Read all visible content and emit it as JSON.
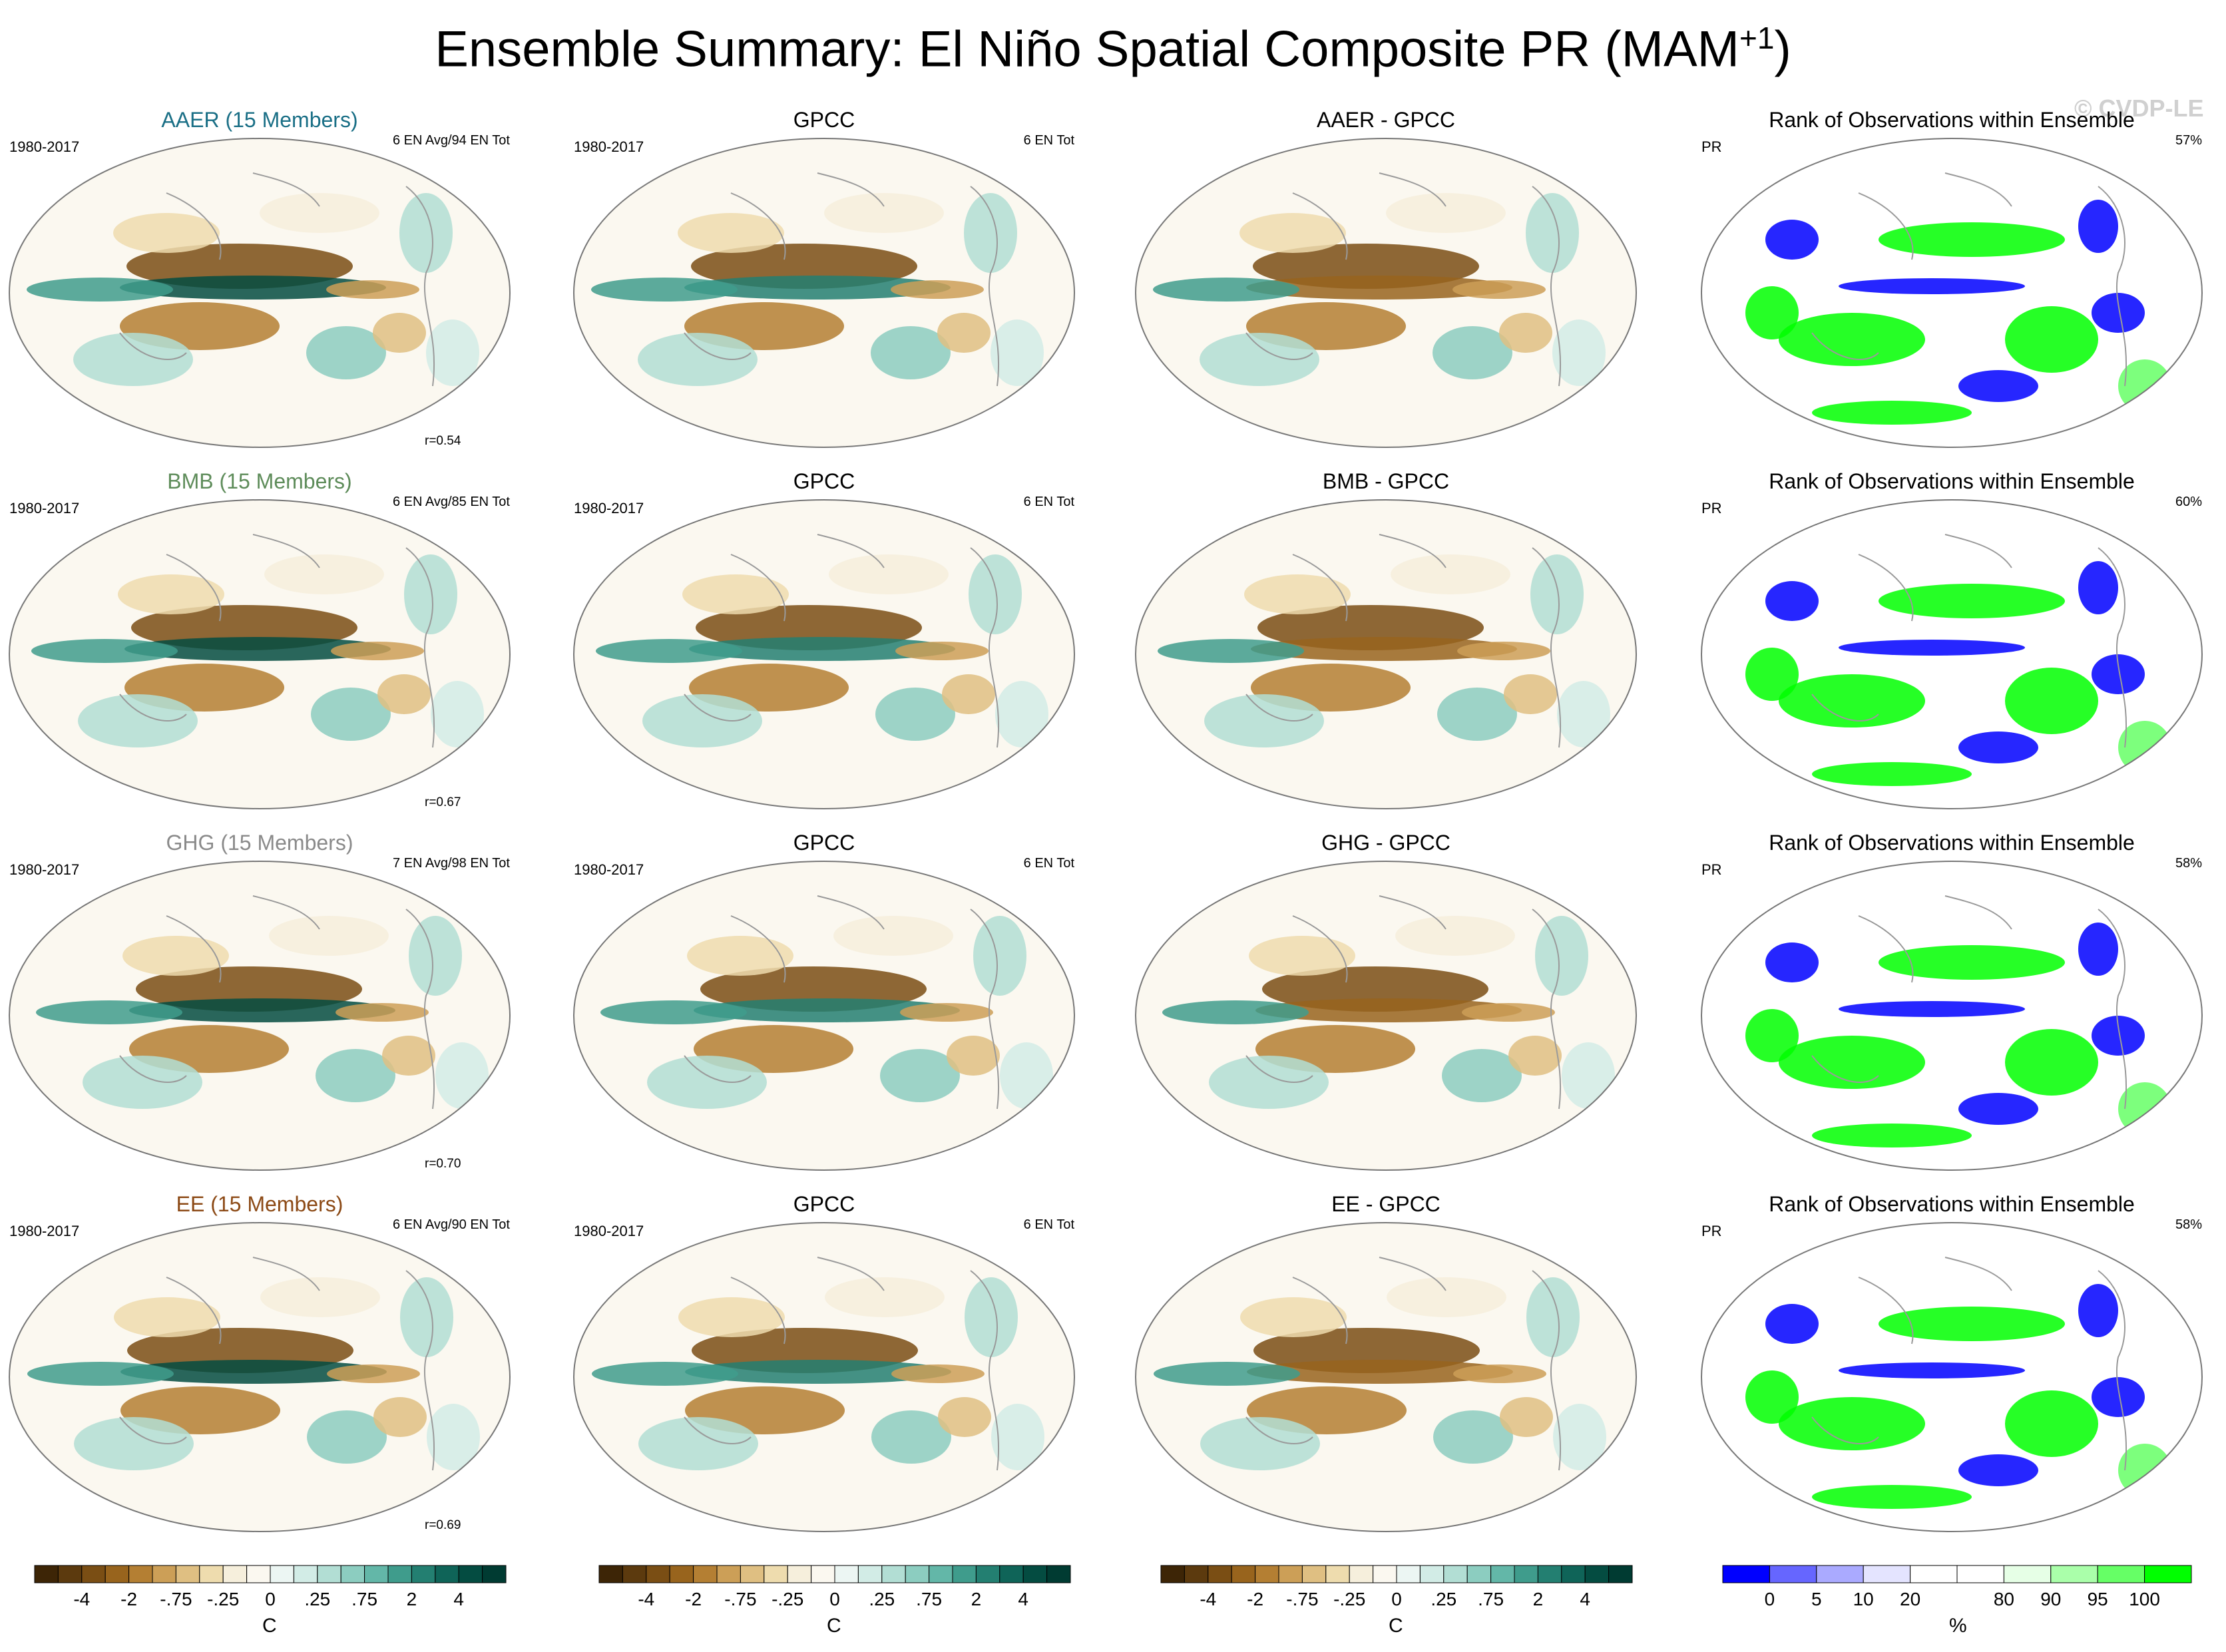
{
  "title": {
    "main": "Ensemble Summary: El Niño Spatial Composite PR (MAM",
    "superscript": "+1",
    "close": ")"
  },
  "watermark": "© CVDP-LE",
  "colors": {
    "AAER": "#1a6f86",
    "BMB": "#5e8c5a",
    "GHG": "#8a8a8a",
    "EE": "#8c4a16"
  },
  "rows": [
    {
      "model": {
        "title": "AAER (15 Members)",
        "period": "1980-2017",
        "events": "6 EN Avg/94 EN Tot",
        "r": "r=0.54",
        "color_key": "AAER"
      },
      "obs": {
        "title": "GPCC",
        "period": "1980-2017",
        "events": "6 EN Tot"
      },
      "diff": {
        "title": "AAER - GPCC"
      },
      "rank": {
        "title": "Rank of Observations within Ensemble",
        "var": "PR",
        "percent": "57%"
      }
    },
    {
      "model": {
        "title": "BMB (15 Members)",
        "period": "1980-2017",
        "events": "6 EN Avg/85 EN Tot",
        "r": "r=0.67",
        "color_key": "BMB"
      },
      "obs": {
        "title": "GPCC",
        "period": "1980-2017",
        "events": "6 EN Tot"
      },
      "diff": {
        "title": "BMB - GPCC"
      },
      "rank": {
        "title": "Rank of Observations within Ensemble",
        "var": "PR",
        "percent": "60%"
      }
    },
    {
      "model": {
        "title": "GHG (15 Members)",
        "period": "1980-2017",
        "events": "7 EN Avg/98 EN Tot",
        "r": "r=0.70",
        "color_key": "GHG"
      },
      "obs": {
        "title": "GPCC",
        "period": "1980-2017",
        "events": "6 EN Tot"
      },
      "diff": {
        "title": "GHG - GPCC"
      },
      "rank": {
        "title": "Rank of Observations within Ensemble",
        "var": "PR",
        "percent": "58%"
      }
    },
    {
      "model": {
        "title": "EE (15 Members)",
        "period": "1980-2017",
        "events": "6 EN Avg/90 EN Tot",
        "r": "r=0.69",
        "color_key": "EE"
      },
      "obs": {
        "title": "GPCC",
        "period": "1980-2017",
        "events": "6 EN Tot"
      },
      "diff": {
        "title": "EE - GPCC"
      },
      "rank": {
        "title": "Rank of Observations within Ensemble",
        "var": "PR",
        "percent": "58%"
      }
    }
  ],
  "chart_data": {
    "type": "heatmap",
    "projection": "global map composites",
    "anomaly_colorbar": {
      "unit": "C",
      "tick_labels": [
        "-4",
        "-2",
        "-.75",
        "-.25",
        "0",
        ".25",
        ".75",
        "2",
        "4"
      ],
      "colors": [
        "#3d2506",
        "#5c3a0e",
        "#7a4e14",
        "#98641d",
        "#b47f33",
        "#cc9f57",
        "#dfbf82",
        "#eedcae",
        "#f6efdc",
        "#fbf8f0",
        "#ecf6f3",
        "#d2ece6",
        "#b2ded4",
        "#8ccdc0",
        "#63b7a8",
        "#3f9c8c",
        "#237f71",
        "#0f6458",
        "#044c41",
        "#003b32"
      ]
    },
    "rank_colorbar": {
      "unit": "%",
      "tick_labels": [
        "0",
        "5",
        "10",
        "20",
        "80",
        "90",
        "95",
        "100"
      ],
      "colors": [
        "#0000ff",
        "#6666ff",
        "#aaaaff",
        "#e4e4ff",
        "#ffffff",
        "#ffffff",
        "#e6ffe6",
        "#aaffaa",
        "#66ff66",
        "#00ff00"
      ]
    }
  }
}
